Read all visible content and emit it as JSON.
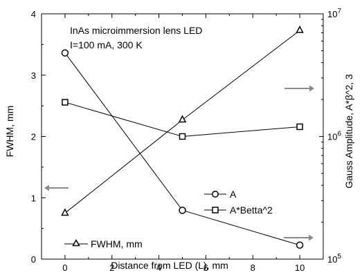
{
  "chart_data": {
    "type": "line",
    "annotation_lines": [
      "InAs microimmersion lens LED",
      "I=100 mA, 300 K"
    ],
    "xlabel": "Distance from LED (L), mm",
    "ylabel_left": "FWHM, mm",
    "ylabel_right": "Gauss Amplitude, A*β^2, 3",
    "xlim": [
      -1,
      11
    ],
    "x_ticks": [
      "0",
      "2",
      "4",
      "6",
      "8",
      "10"
    ],
    "ylim_left": [
      0,
      4
    ],
    "y_left_ticks": [
      "0",
      "1",
      "2",
      "3",
      "4"
    ],
    "ylim_right": [
      100000,
      10000000
    ],
    "y_right_scale": "log",
    "y_right_ticks": [
      {
        "base": "10",
        "exp": "5"
      },
      {
        "base": "10",
        "exp": "6"
      },
      {
        "base": "10",
        "exp": "7"
      }
    ],
    "grid": false,
    "series": [
      {
        "name": "A",
        "marker": "circle",
        "axis": "right",
        "x": [
          0,
          5,
          10
        ],
        "y": [
          4800000,
          250000,
          130000
        ]
      },
      {
        "name": "A*Betta^2",
        "marker": "square",
        "axis": "right",
        "x": [
          0,
          5,
          10
        ],
        "y": [
          1900000,
          1000000,
          1200000
        ]
      },
      {
        "name": "FWHM, mm",
        "marker": "triangle",
        "axis": "left",
        "x": [
          0,
          5,
          10
        ],
        "y": [
          0.75,
          2.27,
          3.73
        ]
      }
    ],
    "arrows": [
      {
        "target_axis": "left",
        "direction": "left"
      },
      {
        "target_axis": "right",
        "direction": "right"
      },
      {
        "target_axis": "right",
        "direction": "right"
      }
    ]
  }
}
